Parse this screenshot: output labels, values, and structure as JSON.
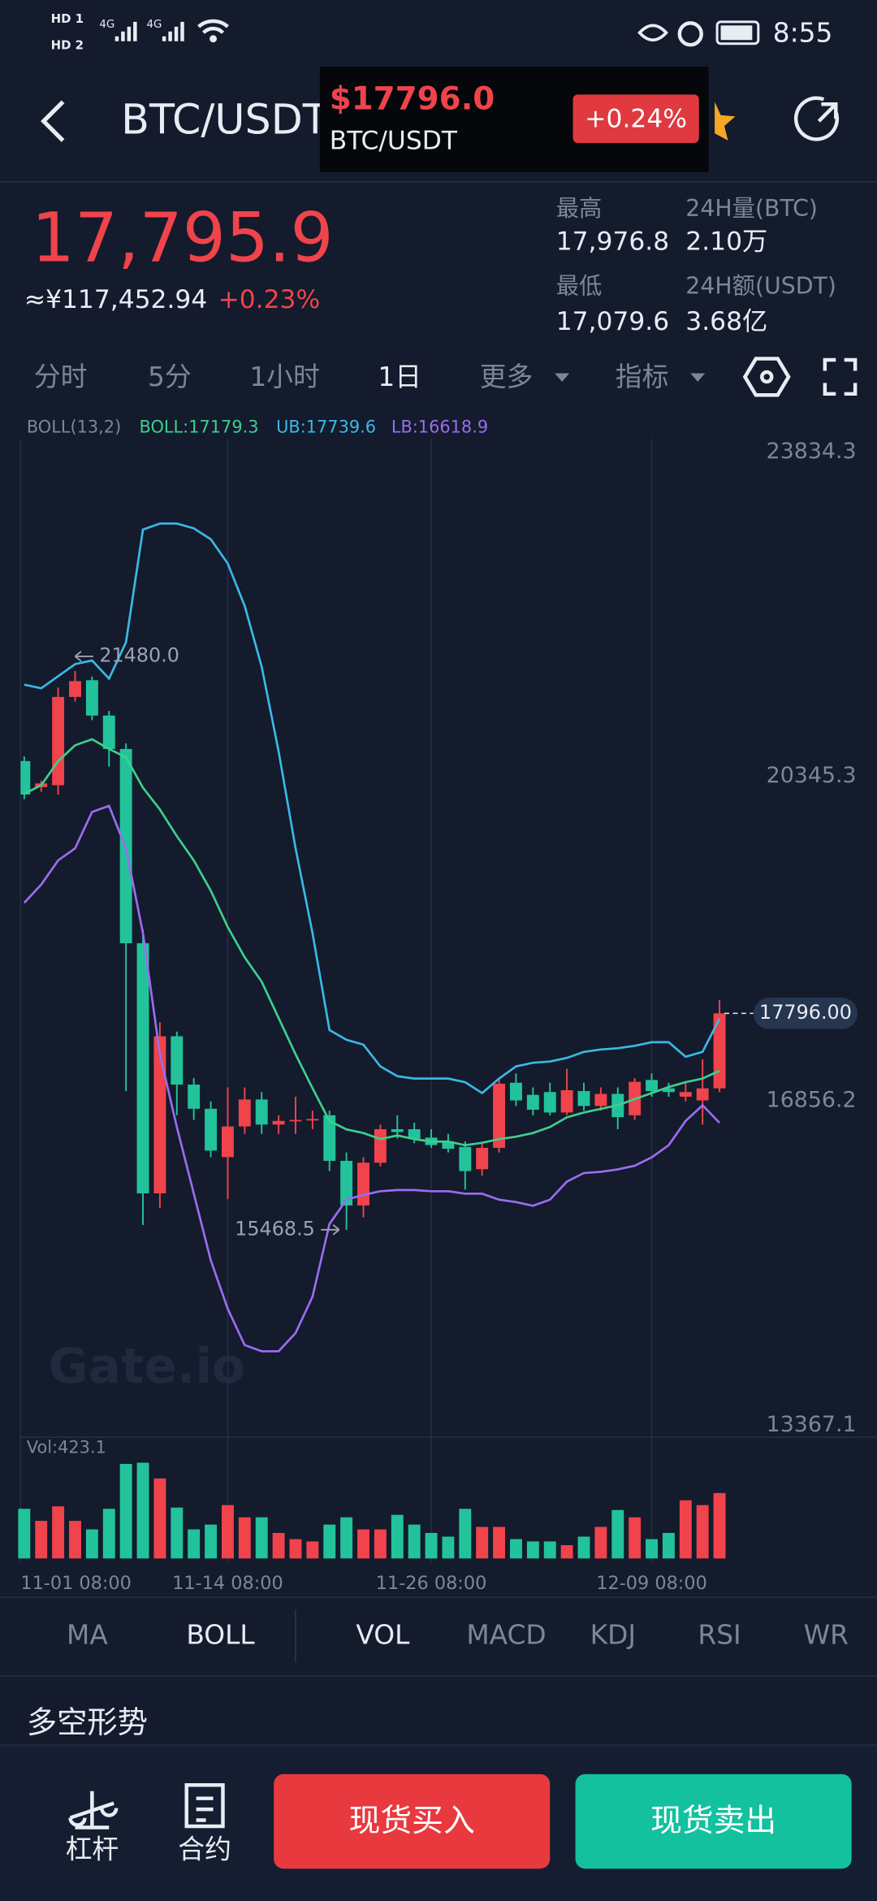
{
  "status_bar": {
    "sim_labels": [
      "HD 1",
      "HD 2"
    ],
    "network": [
      "4G",
      "4G"
    ],
    "time": "8:55"
  },
  "header": {
    "title": "BTC/USDT",
    "popup_price": "$17796.0",
    "popup_pair": "BTC/USDT",
    "popup_change": "+0.24%"
  },
  "ticker": {
    "price": "17,795.9",
    "cny": "≈¥117,452.94",
    "change": "+0.23%",
    "stats": [
      {
        "label": "最高",
        "value": "17,976.8"
      },
      {
        "label": "24H量(BTC)",
        "value": "2.10万"
      },
      {
        "label": "最低",
        "value": "17,079.6"
      },
      {
        "label": "24H额(USDT)",
        "value": "3.68亿"
      }
    ]
  },
  "intervals": [
    "分时",
    "5分",
    "1小时",
    "1日",
    "更多",
    "指标"
  ],
  "chart_data": {
    "type": "candlestick",
    "up_color": "#f0434b",
    "down_color": "#22c39a",
    "watermark": "Gate.io",
    "indicator_labels": [
      "BOLL(13,2)",
      "BOLL:17179.3",
      "UB:17739.6",
      "LB:16618.9"
    ],
    "ylim": [
      13367.1,
      23834.3
    ],
    "yticks": [
      23834.3,
      20345.3,
      16856.2,
      13367.1
    ],
    "grid": true,
    "categories": [
      "11-01 08:00",
      null,
      null,
      null,
      null,
      null,
      null,
      null,
      null,
      null,
      null,
      null,
      "11-14 08:00",
      null,
      null,
      null,
      null,
      null,
      null,
      null,
      null,
      null,
      null,
      null,
      "11-26 08:00",
      null,
      null,
      null,
      null,
      null,
      null,
      null,
      null,
      null,
      null,
      null,
      null,
      "12-09 08:00",
      null,
      null,
      null,
      null
    ],
    "open": [
      20510,
      20230,
      20250,
      21200,
      21380,
      21000,
      20640,
      18550,
      15860,
      17550,
      17030,
      16770,
      16250,
      16580,
      16870,
      16600,
      16640,
      16650,
      16700,
      16210,
      15730,
      16190,
      16550,
      16550,
      16460,
      16420,
      16360,
      16120,
      16350,
      17050,
      16920,
      16950,
      16730,
      16960,
      16800,
      16930,
      16700,
      17080,
      16990,
      16900,
      16860,
      16990
    ],
    "high": [
      20560,
      20300,
      21300,
      21480,
      21420,
      21050,
      20700,
      18700,
      17700,
      17600,
      17100,
      16850,
      17000,
      17000,
      16950,
      16700,
      16900,
      16750,
      16750,
      16300,
      16250,
      16600,
      16700,
      16620,
      16550,
      16500,
      16420,
      16400,
      17100,
      17150,
      17000,
      17050,
      17200,
      17050,
      17000,
      17000,
      17100,
      17150,
      17050,
      17050,
      17300,
      17940
    ],
    "low": [
      20100,
      20180,
      20150,
      21150,
      20950,
      20450,
      16960,
      15520,
      15700,
      16700,
      16650,
      16250,
      15800,
      16500,
      16500,
      16500,
      16500,
      16550,
      16100,
      15468.5,
      15600,
      16150,
      16450,
      16400,
      16350,
      16300,
      15900,
      16050,
      16300,
      16800,
      16700,
      16700,
      16700,
      16750,
      16750,
      16550,
      16650,
      16900,
      16900,
      16850,
      16600,
      16950
    ],
    "close": [
      20150,
      20270,
      21200,
      21370,
      21000,
      20640,
      18550,
      15860,
      17550,
      17030,
      16770,
      16320,
      16580,
      16870,
      16600,
      16640,
      16650,
      16660,
      16210,
      15730,
      16190,
      16550,
      16520,
      16450,
      16380,
      16340,
      16100,
      16350,
      17040,
      16860,
      16760,
      16730,
      16970,
      16800,
      16930,
      16680,
      17060,
      16960,
      16950,
      16950,
      16990,
      17796
    ],
    "bands": [
      {
        "color": "#3ecf8e",
        "values": [
          20158,
          20250,
          20510,
          20680,
          20745,
          20641,
          20550,
          20224,
          19989,
          19702,
          19442,
          19116,
          18725,
          18399,
          18138,
          17747,
          17356,
          16991,
          16639,
          16548,
          16509,
          16444,
          16483,
          16444,
          16417,
          16417,
          16378,
          16404,
          16444,
          16470,
          16509,
          16574,
          16678,
          16730,
          16769,
          16808,
          16874,
          16939,
          17004,
          17056,
          17095,
          17179.3
        ]
      },
      {
        "color": "#3bb8e6",
        "values": [
          21332,
          21293,
          21423,
          21553,
          21592,
          21397,
          21788,
          23000,
          23065,
          23065,
          23013,
          22896,
          22635,
          22179,
          21527,
          20615,
          19572,
          18659,
          17617,
          17512,
          17460,
          17226,
          17121,
          17095,
          17095,
          17095,
          17056,
          16939,
          17095,
          17226,
          17265,
          17278,
          17317,
          17382,
          17408,
          17421,
          17447,
          17486,
          17486,
          17330,
          17382,
          17739.6
        ]
      },
      {
        "color": "#9b6cf0",
        "values": [
          18985,
          19181,
          19442,
          19572,
          19963,
          20028,
          19572,
          18659,
          17356,
          16574,
          15857,
          15140,
          14619,
          14228,
          14162,
          14162,
          14358,
          14749,
          15531,
          15792,
          15844,
          15883,
          15896,
          15896,
          15883,
          15883,
          15857,
          15857,
          15792,
          15766,
          15727,
          15792,
          15987,
          16079,
          16092,
          16118,
          16157,
          16248,
          16378,
          16639,
          16808,
          16618.9
        ]
      }
    ],
    "max_marker": {
      "value": 21480,
      "label": "21480.0"
    },
    "min_marker": {
      "value": 15468.5,
      "label": "15468.5"
    },
    "last_price": {
      "value": 17796,
      "label": "17796.00"
    },
    "volume_label": "Vol:423.1",
    "volume_ylim": [
      0,
      713
    ],
    "volume": [
      321,
      243,
      337,
      243,
      188,
      321,
      611,
      619,
      517,
      329,
      188,
      219,
      345,
      266,
      266,
      165,
      125,
      110,
      219,
      266,
      188,
      188,
      282,
      219,
      165,
      141,
      321,
      204,
      204,
      125,
      110,
      110,
      86,
      141,
      204,
      313,
      266,
      125,
      165,
      376,
      345,
      423.1
    ]
  },
  "indicator_tabs": [
    "MA",
    "BOLL",
    "VOL",
    "MACD",
    "KDJ",
    "RSI",
    "WR"
  ],
  "section_title": "多空形势",
  "bottom_bar": {
    "items": [
      "杠杆",
      "合约"
    ],
    "buy": "现货买入",
    "sell": "现货卖出"
  }
}
